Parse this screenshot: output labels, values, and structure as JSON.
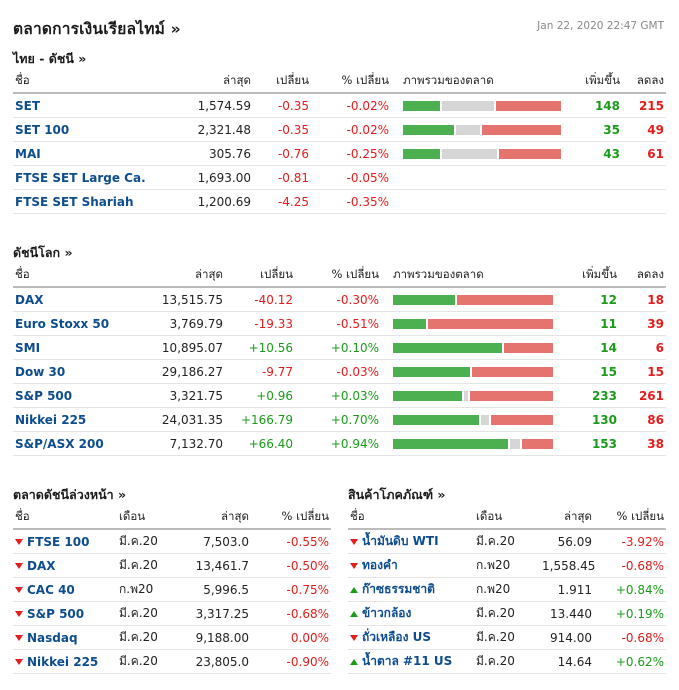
{
  "page": {
    "title": "ตลาดการเงินเรียลไทม์ »",
    "timestamp": "Jan 22, 2020 22:47 GMT"
  },
  "thai": {
    "title": "ไทย - ดัชนี  »",
    "headers": [
      "ชื่อ",
      "ล่าสุด",
      "เปลี่ยน",
      "% เปลี่ยน",
      "ภาพรวมของตลาด",
      "เพิ่มขึ้น",
      "ลดลง"
    ],
    "rows": [
      {
        "name": "SET",
        "last": "1,574.59",
        "chg": "-0.35",
        "pct": "-0.02%",
        "up": "148",
        "down": "215",
        "breadth": [
          0.24,
          0.34,
          0.42
        ]
      },
      {
        "name": "SET 100",
        "last": "2,321.48",
        "chg": "-0.35",
        "pct": "-0.02%",
        "up": "35",
        "down": "49",
        "breadth": [
          0.33,
          0.16,
          0.51
        ]
      },
      {
        "name": "MAI",
        "last": "305.76",
        "chg": "-0.76",
        "pct": "-0.25%",
        "up": "43",
        "down": "61",
        "breadth": [
          0.24,
          0.36,
          0.4
        ]
      },
      {
        "name": "FTSE SET Large Ca.",
        "last": "1,693.00",
        "chg": "-0.81",
        "pct": "-0.05%",
        "up": "",
        "down": "",
        "breadth": null
      },
      {
        "name": "FTSE SET Shariah",
        "last": "1,200.69",
        "chg": "-4.25",
        "pct": "-0.35%",
        "up": "",
        "down": "",
        "breadth": null
      }
    ]
  },
  "world": {
    "title": "ดัชนีโลก »",
    "headers": [
      "ชื่อ",
      "ล่าสุด",
      "เปลี่ยน",
      "% เปลี่ยน",
      "ภาพรวมของตลาด",
      "เพิ่มขึ้น",
      "ลดลง"
    ],
    "rows": [
      {
        "name": "DAX",
        "last": "13,515.75",
        "chg": "-40.12",
        "pct": "-0.30%",
        "up": "12",
        "down": "18",
        "breadth": [
          0.39,
          0.0,
          0.61
        ]
      },
      {
        "name": "Euro Stoxx 50",
        "last": "3,769.79",
        "chg": "-19.33",
        "pct": "-0.51%",
        "up": "11",
        "down": "39",
        "breadth": [
          0.21,
          0.0,
          0.79
        ]
      },
      {
        "name": "SMI",
        "last": "10,895.07",
        "chg": "+10.56",
        "pct": "+0.10%",
        "up": "14",
        "down": "6",
        "breadth": [
          0.69,
          0.0,
          0.31
        ]
      },
      {
        "name": "Dow 30",
        "last": "29,186.27",
        "chg": "-9.77",
        "pct": "-0.03%",
        "up": "15",
        "down": "15",
        "breadth": [
          0.49,
          0.0,
          0.51
        ]
      },
      {
        "name": "S&P 500",
        "last": "3,321.75",
        "chg": "+0.96",
        "pct": "+0.03%",
        "up": "233",
        "down": "261",
        "breadth": [
          0.44,
          0.03,
          0.53
        ]
      },
      {
        "name": "Nikkei 225",
        "last": "24,031.35",
        "chg": "+166.79",
        "pct": "+0.70%",
        "up": "130",
        "down": "86",
        "breadth": [
          0.55,
          0.05,
          0.4
        ]
      },
      {
        "name": "S&P/ASX 200",
        "last": "7,132.70",
        "chg": "+66.40",
        "pct": "+0.94%",
        "up": "153",
        "down": "38",
        "breadth": [
          0.74,
          0.06,
          0.2
        ]
      }
    ]
  },
  "futures": {
    "title": "ตลาดดัชนีล่วงหน้า »",
    "headers": [
      "ชื่อ",
      "เดือน",
      "ล่าสุด",
      "% เปลี่ยน"
    ],
    "rows": [
      {
        "name": "FTSE 100",
        "month": "มี.ค.20",
        "last": "7,503.0",
        "pct": "-0.55%",
        "dir": "down"
      },
      {
        "name": "DAX",
        "month": "มี.ค.20",
        "last": "13,461.7",
        "pct": "-0.50%",
        "dir": "down"
      },
      {
        "name": "CAC 40",
        "month": "ก.พ20",
        "last": "5,996.5",
        "pct": "-0.75%",
        "dir": "down"
      },
      {
        "name": "S&P 500",
        "month": "มี.ค.20",
        "last": "3,317.25",
        "pct": "-0.68%",
        "dir": "down"
      },
      {
        "name": "Nasdaq",
        "month": "มี.ค.20",
        "last": "9,188.00",
        "pct": "0.00%",
        "dir": "down"
      },
      {
        "name": "Nikkei 225",
        "month": "มี.ค.20",
        "last": "23,805.0",
        "pct": "-0.90%",
        "dir": "down"
      }
    ]
  },
  "commodities": {
    "title": "สินค้าโภคภัณฑ์ »",
    "headers": [
      "ชื่อ",
      "เดือน",
      "ล่าสุด",
      "% เปลี่ยน"
    ],
    "rows": [
      {
        "name": "น้ำมันดิบ WTI",
        "month": "มี.ค.20",
        "last": "56.09",
        "pct": "-3.92%",
        "dir": "down"
      },
      {
        "name": "ทองคำ",
        "month": "ก.พ20",
        "last": "1,558.45",
        "pct": "-0.68%",
        "dir": "down"
      },
      {
        "name": "ก๊าซธรรมชาติ",
        "month": "ก.พ20",
        "last": "1.911",
        "pct": "+0.84%",
        "dir": "up"
      },
      {
        "name": "ข้าวกล้อง",
        "month": "มี.ค.20",
        "last": "13.440",
        "pct": "+0.19%",
        "dir": "up"
      },
      {
        "name": "ถั่วเหลือง US",
        "month": "มี.ค.20",
        "last": "914.00",
        "pct": "-0.68%",
        "dir": "down"
      },
      {
        "name": "น้ำตาล #11 US",
        "month": "มี.ค.20",
        "last": "14.64",
        "pct": "+0.62%",
        "dir": "up"
      }
    ]
  },
  "colors": {
    "positive": "#1a9c1a",
    "negative": "#e41c1c",
    "link": "#0d4d8e",
    "bar_up": "#4caf50",
    "bar_neutral": "#d6d6d6",
    "bar_down": "#e5736e"
  }
}
